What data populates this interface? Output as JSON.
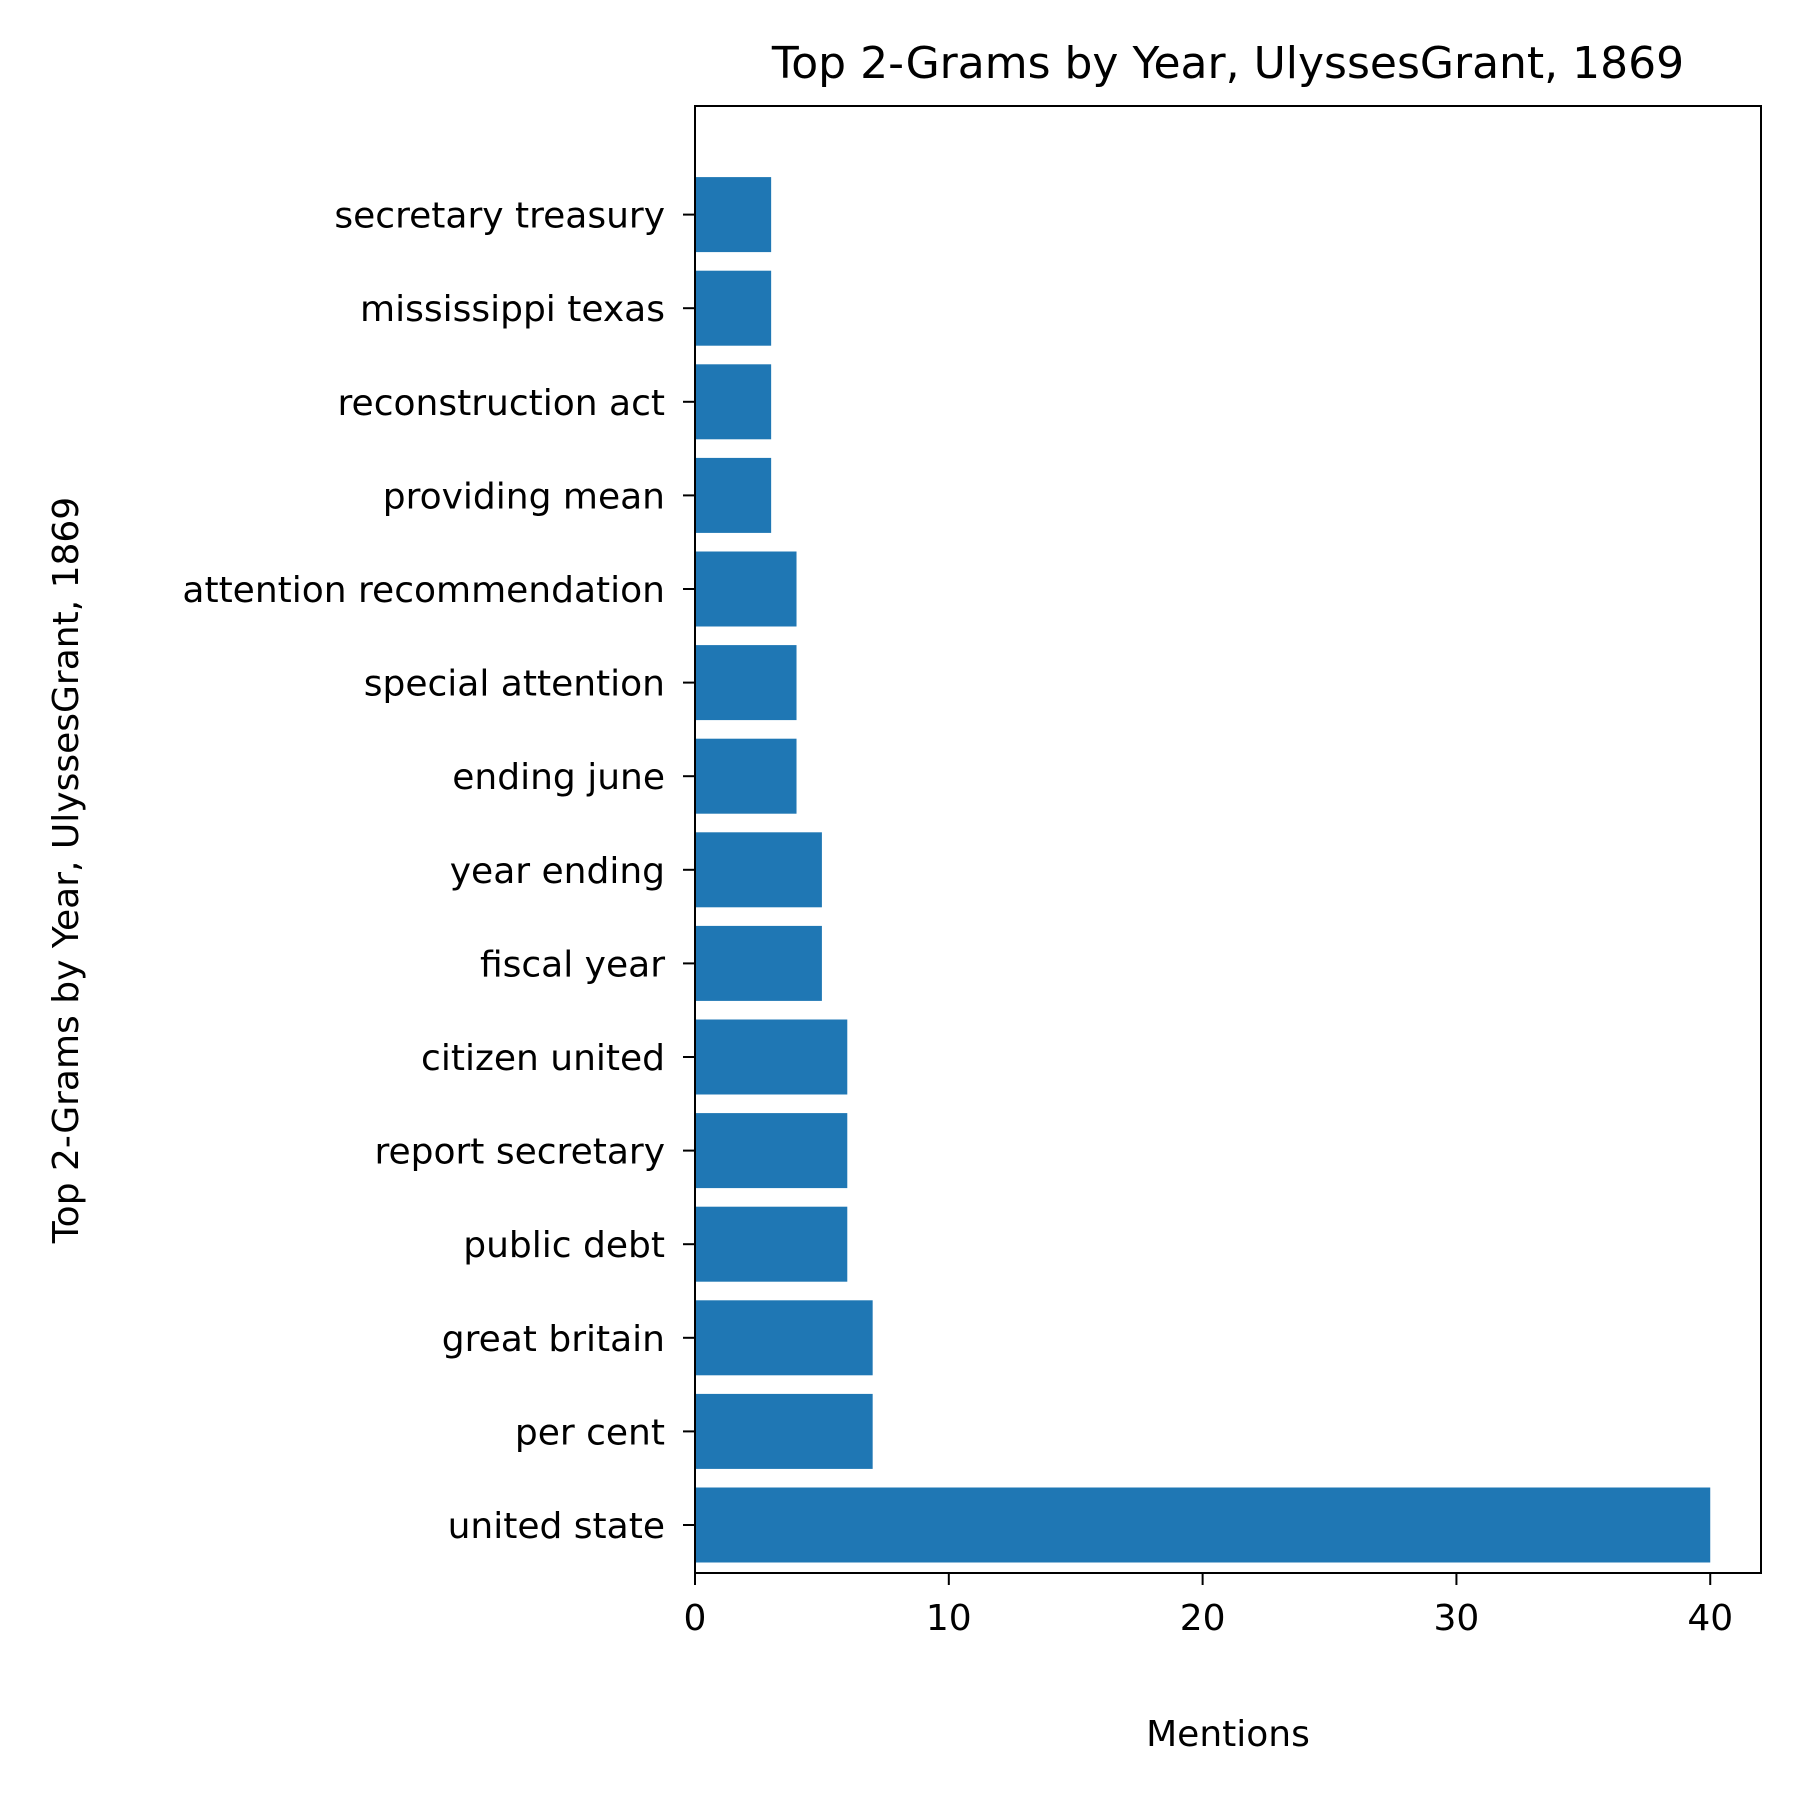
{
  "chart_data": {
    "type": "bar",
    "orientation": "horizontal",
    "title": "Top 2-Grams by Year, UlyssesGrant, 1869",
    "xlabel": "Mentions",
    "ylabel": "Top 2-Grams by Year, UlyssesGrant, 1869",
    "categories": [
      "united state",
      "per cent",
      "great britain",
      "public debt",
      "report secretary",
      "citizen united",
      "fiscal year",
      "year ending",
      "ending june",
      "special attention",
      "attention recommendation",
      "providing mean",
      "reconstruction act",
      "mississippi texas",
      "secretary treasury"
    ],
    "values": [
      40,
      7,
      7,
      6,
      6,
      6,
      5,
      5,
      4,
      4,
      4,
      3,
      3,
      3,
      3
    ],
    "xlim": [
      0,
      42
    ],
    "xticks": [
      0,
      10,
      20,
      30,
      40
    ],
    "grid": false,
    "bar_color": "#1f77b4"
  }
}
